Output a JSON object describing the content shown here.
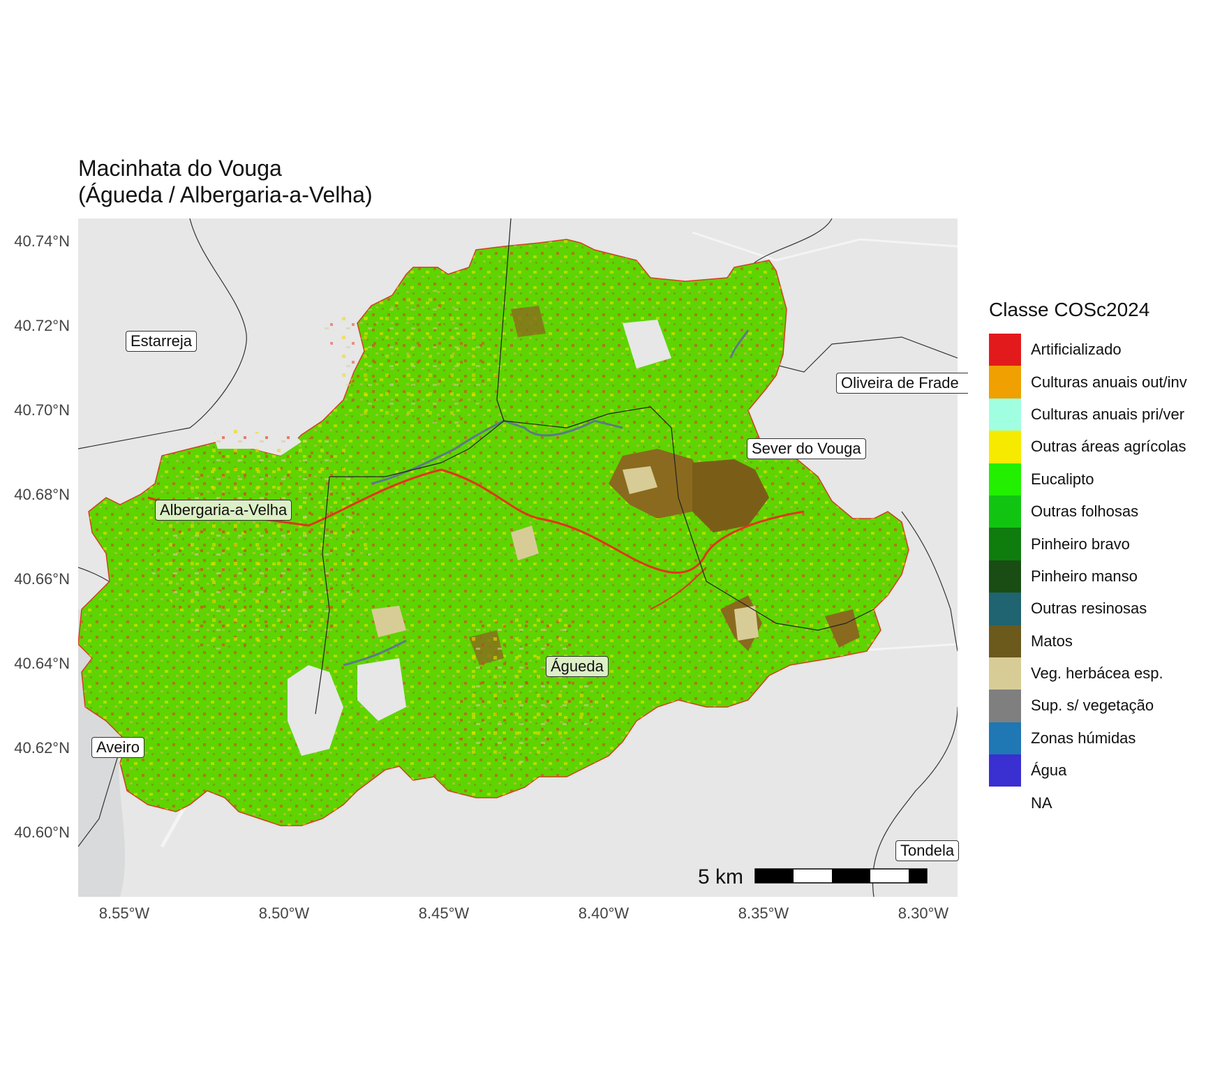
{
  "title_line1": "Macinhata do Vouga",
  "title_line2": "(Águeda / Albergaria-a-Velha)",
  "y_axis_ticks": [
    "40.74°N",
    "40.72°N",
    "40.70°N",
    "40.68°N",
    "40.66°N",
    "40.64°N",
    "40.62°N",
    "40.60°N"
  ],
  "x_axis_ticks": [
    "8.55°W",
    "8.50°W",
    "8.45°W",
    "8.40°W",
    "8.35°W",
    "8.30°W"
  ],
  "places": {
    "estarreja": "Estarreja",
    "oliveira": "Oliveira de Frade",
    "sever": "Sever do Vouga",
    "albergaria": "Albergaria-a-Velha",
    "agueda": "Águeda",
    "aveiro": "Aveiro",
    "tondela": "Tondela"
  },
  "scale_bar": {
    "label": "5 km"
  },
  "legend": {
    "title": "Classe COSc2024",
    "items": [
      {
        "label": "Artificializado",
        "color": "#e31a1c"
      },
      {
        "label": "Culturas anuais out/inv",
        "color": "#f0a000"
      },
      {
        "label": "Culturas anuais pri/ver",
        "color": "#a0ffe0"
      },
      {
        "label": "Outras áreas agrícolas",
        "color": "#f5ea00"
      },
      {
        "label": "Eucalipto",
        "color": "#22f000"
      },
      {
        "label": "Outras folhosas",
        "color": "#12c412"
      },
      {
        "label": "Pinheiro bravo",
        "color": "#0e7d0e"
      },
      {
        "label": "Pinheiro manso",
        "color": "#1a4d14"
      },
      {
        "label": "Outras resinosas",
        "color": "#1f6470"
      },
      {
        "label": "Matos",
        "color": "#6b5a1c"
      },
      {
        "label": "Veg. herbácea esp.",
        "color": "#d8cc96"
      },
      {
        "label": "Sup. s/ vegetação",
        "color": "#7f7f7f"
      },
      {
        "label": "Zonas húmidas",
        "color": "#1f77b4"
      },
      {
        "label": "Água",
        "color": "#3a2fd0"
      },
      {
        "label": "NA",
        "color": "#ffffff"
      }
    ]
  }
}
